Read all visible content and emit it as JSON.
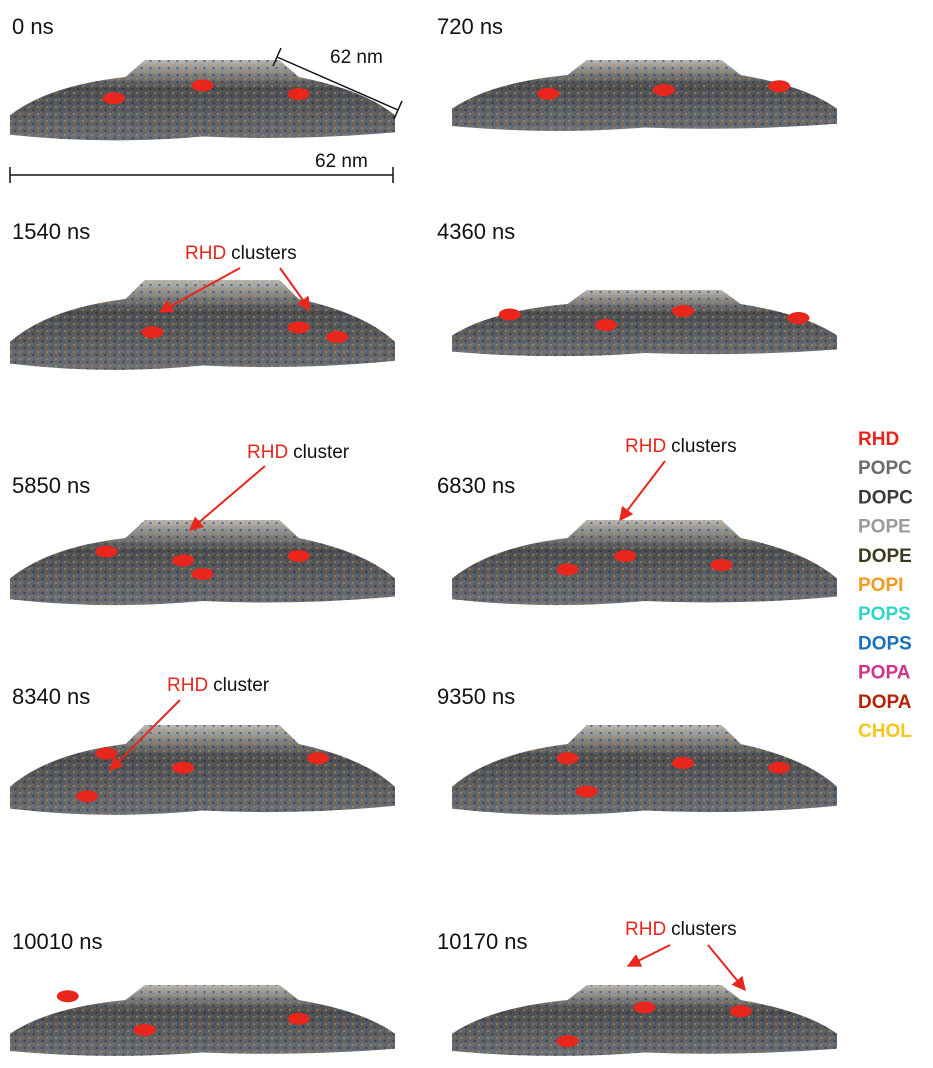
{
  "panels": [
    {
      "time": "0 ns"
    },
    {
      "time": "720 ns"
    },
    {
      "time": "1540 ns"
    },
    {
      "time": "4360 ns"
    },
    {
      "time": "5850 ns"
    },
    {
      "time": "6830 ns"
    },
    {
      "time": "8340 ns"
    },
    {
      "time": "9350 ns"
    },
    {
      "time": "10010 ns"
    },
    {
      "time": "10170 ns"
    }
  ],
  "scale_bars": [
    "62 nm",
    "62 nm"
  ],
  "annotations": [
    {
      "highlight": "RHD",
      "text": "clusters"
    },
    {
      "highlight": "RHD",
      "text": "cluster"
    },
    {
      "highlight": "RHD",
      "text": "clusters"
    },
    {
      "highlight": "RHD",
      "text": "cluster"
    },
    {
      "highlight": "RHD",
      "text": "clusters"
    }
  ],
  "legend": [
    {
      "name": "RHD",
      "color": "#e8261c"
    },
    {
      "name": "POPC",
      "color": "#6b6b6b"
    },
    {
      "name": "DOPC",
      "color": "#3a3a3a"
    },
    {
      "name": "POPE",
      "color": "#9a9a9a"
    },
    {
      "name": "DOPE",
      "color": "#3b3a1c"
    },
    {
      "name": "POPI",
      "color": "#f39a1e"
    },
    {
      "name": "POPS",
      "color": "#2fd6c7"
    },
    {
      "name": "DOPS",
      "color": "#1a6fbf"
    },
    {
      "name": "POPA",
      "color": "#d1348a"
    },
    {
      "name": "DOPA",
      "color": "#b52208"
    },
    {
      "name": "CHOL",
      "color": "#f5c518"
    }
  ]
}
